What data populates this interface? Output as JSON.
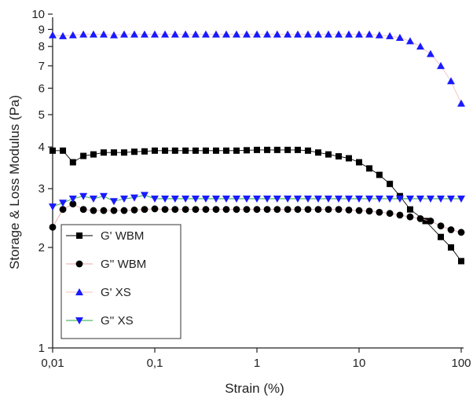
{
  "chart_data": {
    "type": "scatter",
    "xlabel": "Strain (%)",
    "ylabel": "Storage & Loss Modulus (Pa)",
    "x_scale": "log",
    "y_scale": "log",
    "xlim": [
      0.01,
      100
    ],
    "ylim": [
      1,
      10
    ],
    "x_ticks": [
      {
        "value": 0.01,
        "label": "0,01"
      },
      {
        "value": 0.1,
        "label": "0,1"
      },
      {
        "value": 1,
        "label": "1"
      },
      {
        "value": 10,
        "label": "10"
      },
      {
        "value": 100,
        "label": "100"
      }
    ],
    "y_ticks": [
      {
        "value": 1,
        "label": "1"
      },
      {
        "value": 2,
        "label": "2"
      },
      {
        "value": 3,
        "label": "3"
      },
      {
        "value": 4,
        "label": "4"
      },
      {
        "value": 5,
        "label": "5"
      },
      {
        "value": 6,
        "label": "6"
      },
      {
        "value": 7,
        "label": "7"
      },
      {
        "value": 8,
        "label": "8"
      },
      {
        "value": 9,
        "label": "9"
      },
      {
        "value": 10,
        "label": "10"
      }
    ],
    "grid": false,
    "legend_position": "bottom-left",
    "series": [
      {
        "name": "G' WBM",
        "marker": "square",
        "marker_color": "#000000",
        "line_color": "#000000",
        "x": [
          0.01,
          0.0126,
          0.0158,
          0.02,
          0.0251,
          0.0316,
          0.0398,
          0.0501,
          0.0631,
          0.0794,
          0.1,
          0.126,
          0.158,
          0.2,
          0.251,
          0.316,
          0.398,
          0.501,
          0.631,
          0.794,
          1,
          1.26,
          1.58,
          2,
          2.51,
          3.16,
          3.98,
          5.01,
          6.31,
          7.94,
          10,
          12.6,
          15.8,
          20,
          25.1,
          31.6,
          44.7,
          63.1,
          79.4,
          100
        ],
        "y": [
          3.9,
          3.9,
          3.6,
          3.76,
          3.8,
          3.85,
          3.85,
          3.85,
          3.87,
          3.88,
          3.9,
          3.9,
          3.9,
          3.9,
          3.9,
          3.9,
          3.9,
          3.9,
          3.9,
          3.91,
          3.92,
          3.92,
          3.92,
          3.92,
          3.92,
          3.9,
          3.85,
          3.8,
          3.75,
          3.7,
          3.6,
          3.45,
          3.3,
          3.1,
          2.85,
          2.6,
          2.4,
          2.15,
          2.0,
          1.82
        ]
      },
      {
        "name": "G'' WBM",
        "marker": "circle",
        "marker_color": "#000000",
        "line_color": "#e8a8a8",
        "x": [
          0.01,
          0.0126,
          0.0158,
          0.02,
          0.0251,
          0.0316,
          0.0398,
          0.0501,
          0.0631,
          0.0794,
          0.1,
          0.126,
          0.158,
          0.2,
          0.251,
          0.316,
          0.398,
          0.501,
          0.631,
          0.794,
          1,
          1.26,
          1.58,
          2,
          2.51,
          3.16,
          3.98,
          5.01,
          6.31,
          7.94,
          10,
          12.6,
          15.8,
          20,
          25.1,
          31.6,
          39.8,
          50.1,
          63.1,
          79.4,
          100
        ],
        "y": [
          2.3,
          2.6,
          2.7,
          2.6,
          2.58,
          2.58,
          2.58,
          2.58,
          2.59,
          2.6,
          2.61,
          2.6,
          2.6,
          2.6,
          2.6,
          2.6,
          2.6,
          2.6,
          2.6,
          2.6,
          2.6,
          2.6,
          2.6,
          2.6,
          2.6,
          2.6,
          2.6,
          2.6,
          2.6,
          2.59,
          2.58,
          2.57,
          2.55,
          2.53,
          2.5,
          2.47,
          2.44,
          2.4,
          2.32,
          2.26,
          2.22
        ]
      },
      {
        "name": "G' XS",
        "marker": "triangle-up",
        "marker_color": "#1a1aff",
        "line_color": "#f0c0c0",
        "x": [
          0.01,
          0.0126,
          0.0158,
          0.02,
          0.0251,
          0.0316,
          0.0398,
          0.0501,
          0.0631,
          0.0794,
          0.1,
          0.126,
          0.158,
          0.2,
          0.251,
          0.316,
          0.398,
          0.501,
          0.631,
          0.794,
          1,
          1.26,
          1.58,
          2,
          2.51,
          3.16,
          3.98,
          5.01,
          6.31,
          7.94,
          10,
          12.6,
          15.8,
          20,
          25.1,
          31.6,
          39.8,
          50.1,
          63.1,
          79.4,
          100
        ],
        "y": [
          8.65,
          8.6,
          8.65,
          8.7,
          8.7,
          8.7,
          8.65,
          8.7,
          8.7,
          8.7,
          8.7,
          8.7,
          8.7,
          8.7,
          8.7,
          8.7,
          8.7,
          8.7,
          8.7,
          8.7,
          8.7,
          8.7,
          8.7,
          8.7,
          8.7,
          8.7,
          8.7,
          8.7,
          8.7,
          8.7,
          8.7,
          8.7,
          8.65,
          8.6,
          8.5,
          8.3,
          8.0,
          7.6,
          7.0,
          6.3,
          5.4
        ]
      },
      {
        "name": "G'' XS",
        "marker": "triangle-down",
        "marker_color": "#1a1aff",
        "line_color": "#22aa44",
        "x": [
          0.01,
          0.0126,
          0.0158,
          0.02,
          0.0251,
          0.0316,
          0.0398,
          0.0501,
          0.0631,
          0.0794,
          0.1,
          0.126,
          0.158,
          0.2,
          0.251,
          0.316,
          0.398,
          0.501,
          0.631,
          0.794,
          1,
          1.26,
          1.58,
          2,
          2.51,
          3.16,
          3.98,
          5.01,
          6.31,
          7.94,
          10,
          12.6,
          15.8,
          20,
          25.1,
          31.6,
          39.8,
          50.1,
          63.1,
          79.4,
          100
        ],
        "y": [
          2.65,
          2.72,
          2.8,
          2.85,
          2.8,
          2.85,
          2.75,
          2.8,
          2.82,
          2.87,
          2.8,
          2.8,
          2.8,
          2.8,
          2.8,
          2.8,
          2.8,
          2.8,
          2.8,
          2.8,
          2.8,
          2.8,
          2.8,
          2.8,
          2.8,
          2.8,
          2.8,
          2.8,
          2.8,
          2.8,
          2.8,
          2.8,
          2.8,
          2.8,
          2.8,
          2.8,
          2.8,
          2.8,
          2.8,
          2.8,
          2.8
        ]
      }
    ]
  }
}
